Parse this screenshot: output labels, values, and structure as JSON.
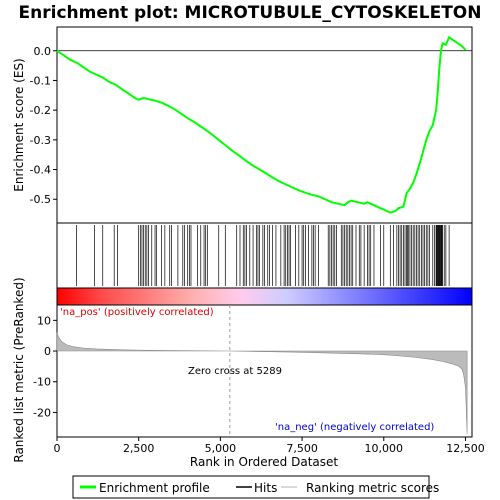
{
  "chart_data": {
    "type": "line",
    "title": "Enrichment plot: MICROTUBULE_CYTOSKELETON",
    "xlabel": "Rank in Ordered Dataset",
    "ylabel_top": "Enrichment score (ES)",
    "ylabel_bottom": "Ranked list metric (PreRanked)",
    "x_range": [
      0,
      12700
    ],
    "x_ticks": [
      0,
      2500,
      5000,
      7500,
      10000,
      12500
    ],
    "x_tick_labels": [
      "0",
      "2,500",
      "5,000",
      "7,500",
      "10,000",
      "12,500"
    ],
    "es_ylim": [
      -0.58,
      0.08
    ],
    "es_ticks": [
      0.0,
      -0.1,
      -0.2,
      -0.3,
      -0.4,
      -0.5
    ],
    "es_tick_labels": [
      "0.0",
      "-0.1",
      "-0.2",
      "-0.3",
      "-0.4",
      "-0.5"
    ],
    "metric_ylim": [
      -28,
      15
    ],
    "metric_ticks": [
      10,
      0,
      -10,
      -20
    ],
    "metric_tick_labels": [
      "10",
      "0",
      "-10",
      "-20"
    ],
    "zero_cross": 5289,
    "zero_cross_label": "Zero cross at 5289",
    "pos_label": "'na_pos' (positively correlated)",
    "neg_label": "'na_neg' (negatively correlated)",
    "series": [
      {
        "name": "Enrichment profile",
        "color": "#00ff00",
        "x": [
          0,
          200,
          400,
          600,
          800,
          1000,
          1200,
          1400,
          1600,
          1800,
          2000,
          2200,
          2400,
          2500,
          2600,
          2700,
          2800,
          3000,
          3200,
          3400,
          3600,
          3800,
          4000,
          4200,
          4400,
          4600,
          4800,
          5000,
          5200,
          5400,
          5600,
          5800,
          6000,
          6200,
          6400,
          6600,
          6800,
          7000,
          7200,
          7400,
          7600,
          7800,
          8000,
          8200,
          8400,
          8600,
          8800,
          8900,
          9000,
          9200,
          9400,
          9500,
          9600,
          9800,
          10000,
          10200,
          10350,
          10450,
          10600,
          10700,
          10800,
          10900,
          11000,
          11100,
          11200,
          11300,
          11400,
          11500,
          11600,
          11650,
          11700,
          11750,
          11800,
          11900,
          12000,
          12200,
          12400,
          12500
        ],
        "y": [
          0.0,
          -0.015,
          -0.03,
          -0.04,
          -0.055,
          -0.07,
          -0.08,
          -0.09,
          -0.105,
          -0.115,
          -0.13,
          -0.145,
          -0.16,
          -0.165,
          -0.16,
          -0.16,
          -0.163,
          -0.168,
          -0.175,
          -0.185,
          -0.197,
          -0.212,
          -0.227,
          -0.24,
          -0.255,
          -0.27,
          -0.287,
          -0.305,
          -0.322,
          -0.34,
          -0.355,
          -0.372,
          -0.387,
          -0.4,
          -0.413,
          -0.427,
          -0.44,
          -0.45,
          -0.46,
          -0.47,
          -0.478,
          -0.485,
          -0.49,
          -0.5,
          -0.51,
          -0.515,
          -0.52,
          -0.51,
          -0.505,
          -0.51,
          -0.515,
          -0.51,
          -0.515,
          -0.525,
          -0.535,
          -0.545,
          -0.54,
          -0.53,
          -0.525,
          -0.48,
          -0.465,
          -0.445,
          -0.415,
          -0.38,
          -0.34,
          -0.3,
          -0.27,
          -0.25,
          -0.2,
          -0.14,
          -0.06,
          0.0,
          0.025,
          0.02,
          0.045,
          0.03,
          0.015,
          0.003
        ]
      }
    ],
    "metric_curve": {
      "x": [
        0,
        50,
        150,
        300,
        500,
        800,
        1200,
        2000,
        3000,
        4000,
        5289,
        6500,
        7500,
        8500,
        9500,
        10000,
        10500,
        11000,
        11500,
        11800,
        12100,
        12300,
        12400,
        12450,
        12500,
        12550
      ],
      "y": [
        6.0,
        4.5,
        3.0,
        2.0,
        1.4,
        1.0,
        0.7,
        0.4,
        0.2,
        0.1,
        0.0,
        -0.2,
        -0.4,
        -0.7,
        -1.0,
        -1.2,
        -1.6,
        -2.1,
        -2.8,
        -3.4,
        -4.2,
        -5.0,
        -6.0,
        -8.0,
        -12.0,
        -27.0
      ]
    },
    "hits": [
      600,
      1150,
      1400,
      1750,
      1850,
      2500,
      2550,
      2600,
      2650,
      2700,
      2750,
      2800,
      2900,
      3000,
      3050,
      3200,
      3300,
      3450,
      3500,
      3700,
      3850,
      3900,
      4000,
      4050,
      4100,
      4300,
      4400,
      4500,
      4550,
      4600,
      4950,
      5150,
      5500,
      5600,
      5700,
      5750,
      5800,
      5900,
      6000,
      6100,
      6150,
      6200,
      6300,
      6350,
      6450,
      6500,
      6600,
      6700,
      6850,
      6950,
      7000,
      7050,
      7100,
      7150,
      7300,
      7400,
      7500,
      7550,
      7600,
      7700,
      7800,
      7850,
      7900,
      8000,
      8300,
      8350,
      8400,
      8450,
      8500,
      8550,
      8700,
      8750,
      8800,
      8850,
      8900,
      8950,
      9000,
      9050,
      9150,
      9250,
      9300,
      9400,
      9500,
      9550,
      9600,
      9700,
      9900,
      10000,
      10200,
      10300,
      10400,
      10450,
      10500,
      10550,
      10600,
      10650,
      10700,
      10720,
      10750,
      10800,
      10850,
      10900,
      10950,
      11000,
      11050,
      11100,
      11150,
      11200,
      11250,
      11300,
      11350,
      11400,
      11500,
      11550,
      11600,
      11620,
      11640,
      11660,
      11680,
      11700,
      11720,
      11740,
      11760,
      11780,
      11800,
      11850,
      11900,
      12000
    ],
    "heatbar_colors": [
      "#ff0000",
      "#ff4c4c",
      "#ff7f7f",
      "#ffb2b2",
      "#ffccee",
      "#ccccff",
      "#9999ff",
      "#6666ff",
      "#3333ff",
      "#0000ff"
    ],
    "legend": [
      {
        "label": "Enrichment profile",
        "color": "#00ff00"
      },
      {
        "label": "Hits",
        "color": "#000000"
      },
      {
        "label": "Ranking metric scores",
        "color": "#cccccc"
      }
    ]
  }
}
